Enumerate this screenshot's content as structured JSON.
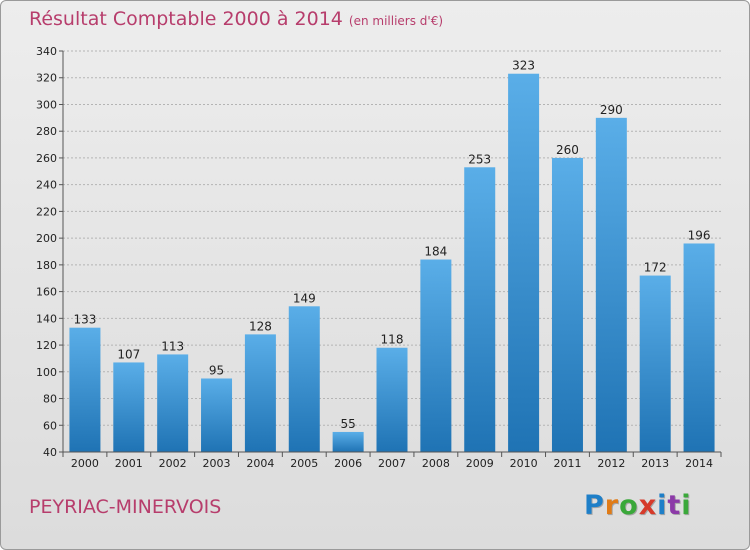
{
  "header": {
    "title": "Résultat Comptable 2000 à 2014",
    "unit": "(en milliers d'€)"
  },
  "footer": {
    "commune": "PEYRIAC-MINERVOIS",
    "logo": "Proxiti",
    "logo_colors": [
      "#1e7fc8",
      "#e07b16",
      "#3aa83a",
      "#d63a2a",
      "#1e7fc8",
      "#8c3aa8",
      "#3aa83a"
    ]
  },
  "colors": {
    "bar_top": "#5aaee8",
    "bar_bottom": "#1f73b4",
    "title": "#b73d6c",
    "grid": "#b4b4b4"
  },
  "chart_data": {
    "type": "bar",
    "title": "Résultat Comptable 2000 à 2014",
    "categories": [
      "2000",
      "2001",
      "2002",
      "2003",
      "2004",
      "2005",
      "2006",
      "2007",
      "2008",
      "2009",
      "2010",
      "2011",
      "2012",
      "2013",
      "2014"
    ],
    "values": [
      133,
      107,
      113,
      95,
      128,
      149,
      55,
      118,
      184,
      253,
      323,
      260,
      290,
      172,
      196
    ],
    "ylim": [
      40,
      340
    ],
    "yticks": [
      40,
      60,
      80,
      100,
      120,
      140,
      160,
      180,
      200,
      220,
      240,
      260,
      280,
      300,
      320,
      340
    ],
    "grid": true,
    "data_labels": true
  }
}
